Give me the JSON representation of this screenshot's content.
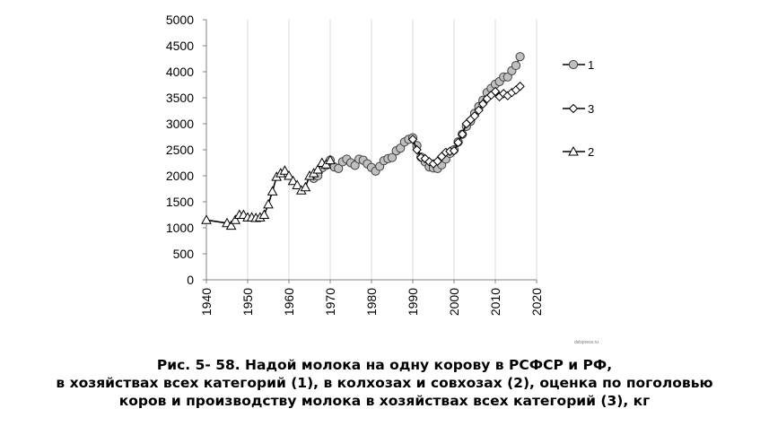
{
  "caption": {
    "line1": "Рис. 5- 58. Надой молока на одну корову в РСФСР и РФ,",
    "line2": "в хозяйствах всех категорий (1), в колхозах и совхозах (2), оценка по поголовью",
    "line3": "коров и производству молока в хозяйствах всех категорий (3), кг"
  },
  "watermark": "dslspress.ru",
  "chart_data": {
    "type": "line",
    "title": "",
    "xlabel": "",
    "ylabel": "",
    "xlim": [
      1940,
      2020
    ],
    "ylim": [
      0,
      5000
    ],
    "xticks": [
      1940,
      1950,
      1960,
      1970,
      1980,
      1990,
      2000,
      2010,
      2020
    ],
    "yticks": [
      0,
      500,
      1000,
      1500,
      2000,
      2500,
      3000,
      3500,
      4000,
      4500,
      5000
    ],
    "grid": "vertical",
    "legend_position": "right",
    "series": [
      {
        "name": "1",
        "marker": "circle",
        "marker_fill": "#c0c0c0",
        "x": [
          1966,
          1967,
          1968,
          1969,
          1970,
          1971,
          1972,
          1973,
          1974,
          1975,
          1976,
          1977,
          1978,
          1979,
          1980,
          1981,
          1982,
          1983,
          1984,
          1985,
          1986,
          1987,
          1988,
          1989,
          1990,
          1991,
          1992,
          1993,
          1994,
          1995,
          1996,
          1997,
          1998,
          1999,
          2000,
          2001,
          2002,
          2003,
          2004,
          2005,
          2006,
          2007,
          2008,
          2009,
          2010,
          2011,
          2012,
          2013,
          2014,
          2015,
          2016
        ],
        "y": [
          1950,
          2000,
          2150,
          2200,
          2300,
          2170,
          2140,
          2270,
          2320,
          2250,
          2200,
          2320,
          2300,
          2230,
          2160,
          2090,
          2180,
          2290,
          2330,
          2350,
          2480,
          2530,
          2650,
          2700,
          2730,
          2580,
          2360,
          2270,
          2170,
          2150,
          2140,
          2210,
          2320,
          2430,
          2500,
          2650,
          2800,
          2950,
          3050,
          3200,
          3330,
          3450,
          3600,
          3680,
          3760,
          3810,
          3900,
          3900,
          4020,
          4120,
          4290
        ]
      },
      {
        "name": "3",
        "marker": "diamond",
        "marker_fill": "#ffffff",
        "x": [
          1990,
          1991,
          1992,
          1993,
          1994,
          1995,
          1996,
          1997,
          1998,
          1999,
          2000,
          2001,
          2002,
          2003,
          2004,
          2005,
          2006,
          2007,
          2008,
          2009,
          2010,
          2011,
          2012,
          2013,
          2014,
          2015,
          2016
        ],
        "y": [
          2700,
          2500,
          2350,
          2330,
          2270,
          2230,
          2280,
          2370,
          2450,
          2470,
          2480,
          2640,
          2800,
          3000,
          3080,
          3150,
          3260,
          3380,
          3480,
          3550,
          3620,
          3520,
          3580,
          3540,
          3600,
          3650,
          3720
        ]
      },
      {
        "name": "2",
        "marker": "triangle",
        "marker_fill": "#ffffff",
        "x": [
          1940,
          1945,
          1946,
          1947,
          1948,
          1949,
          1950,
          1951,
          1952,
          1953,
          1954,
          1955,
          1956,
          1957,
          1958,
          1959,
          1960,
          1961,
          1962,
          1963,
          1964,
          1965,
          1966,
          1967,
          1968,
          1969,
          1970
        ],
        "y": [
          1150,
          1090,
          1040,
          1150,
          1250,
          1250,
          1200,
          1200,
          1190,
          1200,
          1250,
          1450,
          1700,
          1980,
          2050,
          2100,
          2000,
          1900,
          1820,
          1720,
          1780,
          2000,
          2050,
          2120,
          2250,
          2220,
          2300
        ]
      }
    ]
  }
}
